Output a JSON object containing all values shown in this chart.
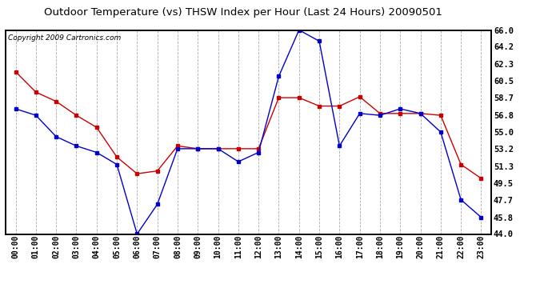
{
  "title": "Outdoor Temperature (vs) THSW Index per Hour (Last 24 Hours) 20090501",
  "copyright": "Copyright 2009 Cartronics.com",
  "hours": [
    "00:00",
    "01:00",
    "02:00",
    "03:00",
    "04:00",
    "05:00",
    "06:00",
    "07:00",
    "08:00",
    "09:00",
    "10:00",
    "11:00",
    "12:00",
    "13:00",
    "14:00",
    "15:00",
    "16:00",
    "17:00",
    "18:00",
    "19:00",
    "20:00",
    "21:00",
    "22:00",
    "23:00"
  ],
  "temp": [
    57.5,
    56.8,
    54.5,
    53.5,
    52.8,
    51.5,
    44.0,
    47.2,
    53.2,
    53.2,
    53.2,
    51.8,
    52.8,
    61.0,
    66.0,
    64.8,
    53.5,
    57.0,
    56.8,
    57.5,
    57.0,
    55.0,
    47.7,
    45.8
  ],
  "thsw": [
    61.5,
    59.3,
    58.3,
    56.8,
    55.5,
    52.3,
    50.5,
    50.8,
    53.5,
    53.2,
    53.2,
    53.2,
    53.2,
    58.7,
    58.7,
    57.8,
    57.8,
    58.8,
    57.0,
    57.0,
    57.0,
    56.8,
    51.5,
    50.0
  ],
  "ylim": [
    44.0,
    66.0
  ],
  "yticks": [
    44.0,
    45.8,
    47.7,
    49.5,
    51.3,
    53.2,
    55.0,
    56.8,
    58.7,
    60.5,
    62.3,
    64.2,
    66.0
  ],
  "temp_color": "#0000cc",
  "thsw_color": "#cc0000",
  "bg_color": "#ffffff",
  "plot_bg_color": "#ffffff",
  "grid_color": "#aaaaaa",
  "title_fontsize": 9.5,
  "copyright_fontsize": 6.5
}
